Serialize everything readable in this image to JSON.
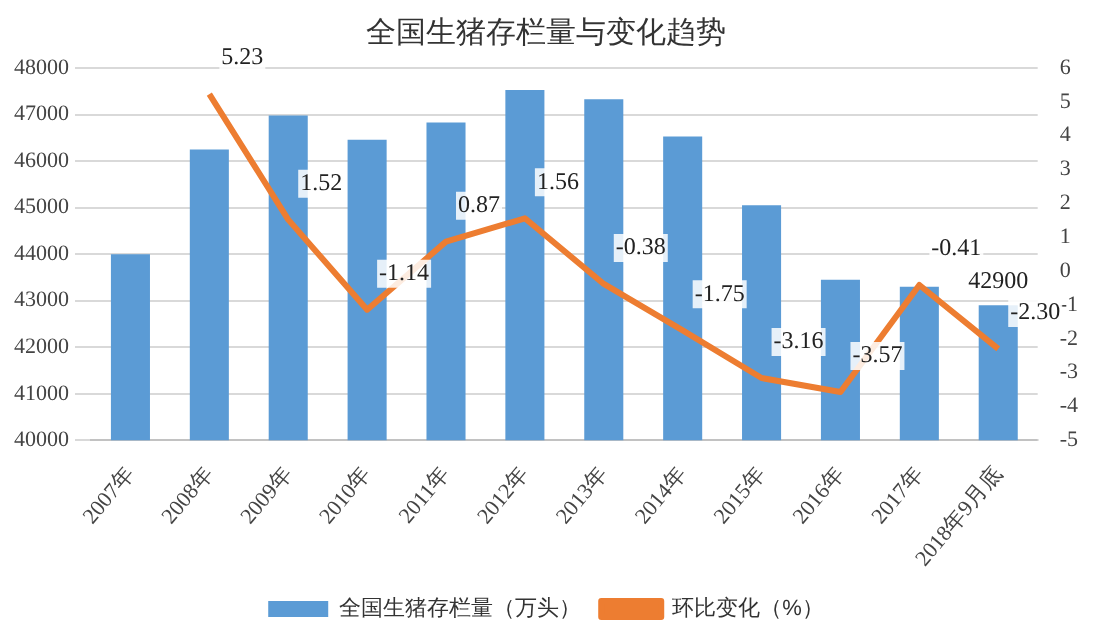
{
  "chart_data": {
    "type": "bar",
    "title": "全国生猪存栏量与变化趋势",
    "categories": [
      "2007年",
      "2008年",
      "2009年",
      "2010年",
      "2011年",
      "2012年",
      "2013年",
      "2014年",
      "2015年",
      "2016年",
      "2017年",
      "2018年9月底"
    ],
    "series": [
      {
        "name": "全国生猪存栏量（万头）",
        "color": "#5b9bd5",
        "values": [
          44000,
          46250,
          46980,
          46460,
          46830,
          47530,
          47330,
          46530,
          45050,
          43450,
          43300,
          42900
        ],
        "value_labels": [
          null,
          null,
          null,
          null,
          null,
          null,
          null,
          null,
          null,
          null,
          null,
          "42900"
        ]
      },
      {
        "name": "环比变化（%）",
        "type": "line",
        "axis": "y2",
        "color": "#ed7d31",
        "values": [
          null,
          5.23,
          1.52,
          -1.14,
          0.87,
          1.56,
          -0.38,
          -1.75,
          -3.16,
          -3.57,
          -0.41,
          -2.3
        ],
        "value_labels": [
          null,
          "5.23",
          "1.52",
          "-1.14",
          "0.87",
          "1.56",
          "-0.38",
          "-1.75",
          "-3.16",
          "-3.57",
          "-0.41",
          "-2.30"
        ]
      }
    ],
    "ylim": [
      40000,
      48000
    ],
    "yticks": [
      40000,
      41000,
      42000,
      43000,
      44000,
      45000,
      46000,
      47000,
      48000
    ],
    "y2lim": [
      -5,
      6
    ],
    "y2ticks": [
      -5,
      -4,
      -3,
      -2,
      -1,
      0,
      1,
      2,
      3,
      4,
      5,
      6
    ],
    "grid": "y",
    "legend": "bottom",
    "marker": "none"
  }
}
